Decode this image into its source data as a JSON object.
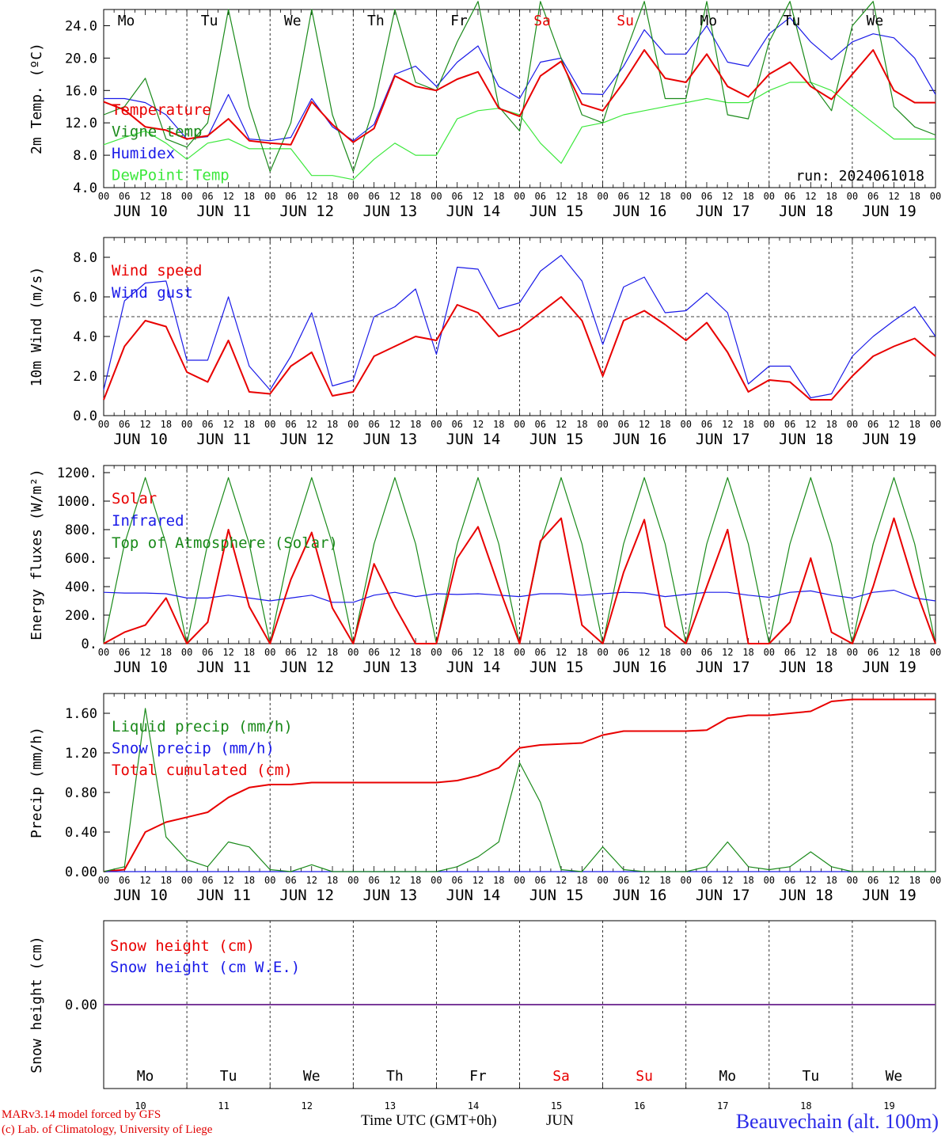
{
  "run_label": "run: 2024061018",
  "day_names": [
    "Mo",
    "Tu",
    "We",
    "Th",
    "Fr",
    "Sa",
    "Su",
    "Mo",
    "Tu",
    "We"
  ],
  "weekend_color": "#e80000",
  "weekday_color": "#000000",
  "hour_ticks": [
    "00",
    "06",
    "12",
    "18"
  ],
  "final_hour_tick": "00",
  "date_labels": [
    "JUN 10",
    "JUN 11",
    "JUN 12",
    "JUN 13",
    "JUN 14",
    "JUN 15",
    "JUN 16",
    "JUN 17",
    "JUN 18",
    "JUN 19"
  ],
  "day_numbers": [
    "10",
    "11",
    "12",
    "13",
    "14",
    "15",
    "16",
    "17",
    "18",
    "19"
  ],
  "footer": {
    "model_line": "MARv3.14 model forced by GFS",
    "lab_line": "(c) Lab. of Climatology, University of Liege",
    "time_axis": "Time UTC (GMT+0h)",
    "month": "JUN",
    "station": "Beauvechain (alt. 100m)"
  },
  "colors": {
    "red": "#e80000",
    "green": "#1a8a1a",
    "blue": "#1a1ae8",
    "light_green": "#3ce83c",
    "purple": "#7a3a9a"
  },
  "chart_data": [
    {
      "type": "line",
      "ylabel": "2m Temp. (ºC)",
      "ylim": [
        4,
        26
      ],
      "yticks": [
        "4.0",
        "8.0",
        "12.0",
        "16.0",
        "20.0",
        "24.0"
      ],
      "x": [
        0,
        6,
        12,
        18,
        24,
        30,
        36,
        42,
        48,
        54,
        60,
        66,
        72,
        78,
        84,
        90,
        96,
        102,
        108,
        114,
        120,
        126,
        132,
        138,
        144,
        150,
        156,
        162,
        168,
        174,
        180,
        186,
        192,
        198,
        204,
        210,
        216,
        222,
        228,
        234,
        240
      ],
      "legend": [
        "Temperature",
        "Vigne temp",
        "Humidex",
        "DewPoint Temp"
      ],
      "series": [
        {
          "name": "Temperature",
          "color": "red",
          "values": [
            14.6,
            13.6,
            11.5,
            11.1,
            10.0,
            10.4,
            12.5,
            9.8,
            9.5,
            9.3,
            14.6,
            11.8,
            9.6,
            11.3,
            17.8,
            16.5,
            16.0,
            17.4,
            18.3,
            13.8,
            12.8,
            17.8,
            19.6,
            14.3,
            13.5,
            17.0,
            21.0,
            17.5,
            17.0,
            20.5,
            16.5,
            15.2,
            18.0,
            19.5,
            16.5,
            14.9,
            18.0,
            21.0,
            16.0,
            14.5,
            14.5
          ]
        },
        {
          "name": "Vigne temp",
          "color": "green",
          "values": [
            13.0,
            14.0,
            17.5,
            10.0,
            9.0,
            12.0,
            26.0,
            14.0,
            6.0,
            12.0,
            26.0,
            13.0,
            6.0,
            14.0,
            26.0,
            17.0,
            16.0,
            22.0,
            27.0,
            14.0,
            11.0,
            27.0,
            20.0,
            13.0,
            12.0,
            20.0,
            27.0,
            15.0,
            15.0,
            27.0,
            13.0,
            12.5,
            22.0,
            27.0,
            17.0,
            13.5,
            24.0,
            27.0,
            14.0,
            11.5,
            10.5
          ]
        },
        {
          "name": "Humidex",
          "color": "blue",
          "values": [
            15.0,
            15.0,
            14.5,
            13.0,
            10.0,
            10.3,
            15.5,
            10.0,
            9.8,
            10.2,
            15.0,
            11.5,
            9.8,
            11.8,
            18.0,
            19.0,
            16.5,
            19.5,
            21.5,
            16.5,
            15.0,
            19.5,
            20.0,
            15.6,
            15.5,
            19.0,
            23.5,
            20.5,
            20.5,
            24.0,
            19.5,
            19.0,
            23.0,
            25.0,
            22.0,
            19.8,
            22.0,
            23.0,
            22.5,
            20.0,
            15.5
          ]
        },
        {
          "name": "DewPoint Temp",
          "color": "light_green",
          "values": [
            9.3,
            10.2,
            11.0,
            9.5,
            7.5,
            9.5,
            10.0,
            8.8,
            8.8,
            8.8,
            5.5,
            5.5,
            5.0,
            7.5,
            9.5,
            8.0,
            8.0,
            12.5,
            13.5,
            13.8,
            13.0,
            9.5,
            7.0,
            11.5,
            12.0,
            13.0,
            13.5,
            14.0,
            14.5,
            15.0,
            14.5,
            14.5,
            16.0,
            17.0,
            17.0,
            16.0,
            14.0,
            12.0,
            10.0,
            10.0,
            10.0
          ]
        }
      ]
    },
    {
      "type": "line",
      "ylabel": "10m Wind (m/s)",
      "ylim": [
        0,
        9
      ],
      "yticks": [
        "0.0",
        "2.0",
        "4.0",
        "6.0",
        "8.0"
      ],
      "ref_line": 5.0,
      "x": [
        0,
        6,
        12,
        18,
        24,
        30,
        36,
        42,
        48,
        54,
        60,
        66,
        72,
        78,
        84,
        90,
        96,
        102,
        108,
        114,
        120,
        126,
        132,
        138,
        144,
        150,
        156,
        162,
        168,
        174,
        180,
        186,
        192,
        198,
        204,
        210,
        216,
        222,
        228,
        234,
        240
      ],
      "legend": [
        "Wind speed",
        "Wind gust"
      ],
      "series": [
        {
          "name": "Wind speed",
          "color": "red",
          "values": [
            0.8,
            3.5,
            4.8,
            4.5,
            2.2,
            1.7,
            3.8,
            1.2,
            1.1,
            2.5,
            3.2,
            1.0,
            1.2,
            3.0,
            3.5,
            4.0,
            3.8,
            5.6,
            5.2,
            4.0,
            4.4,
            5.2,
            6.0,
            4.8,
            2.0,
            4.8,
            5.3,
            4.6,
            3.8,
            4.7,
            3.2,
            1.2,
            1.8,
            1.7,
            0.8,
            0.8,
            2.0,
            3.0,
            3.5,
            3.9,
            3.0
          ]
        },
        {
          "name": "Wind gust",
          "color": "blue",
          "values": [
            1.3,
            5.8,
            6.7,
            6.8,
            2.8,
            2.8,
            6.0,
            2.5,
            1.3,
            3.0,
            5.2,
            1.5,
            1.8,
            5.0,
            5.5,
            6.4,
            3.1,
            7.5,
            7.4,
            5.4,
            5.7,
            7.3,
            8.1,
            6.8,
            3.6,
            6.5,
            7.0,
            5.2,
            5.3,
            6.2,
            5.2,
            1.6,
            2.5,
            2.5,
            0.9,
            1.1,
            3.0,
            4.0,
            4.8,
            5.5,
            4.0
          ]
        }
      ]
    },
    {
      "type": "line",
      "ylabel": "Energy fluxes (W/m²)",
      "ylim": [
        0,
        1250
      ],
      "yticks": [
        "0.",
        "200.",
        "400.",
        "600.",
        "800.",
        "1000.",
        "1200."
      ],
      "x": [
        0,
        6,
        12,
        18,
        24,
        30,
        36,
        42,
        48,
        54,
        60,
        66,
        72,
        78,
        84,
        90,
        96,
        102,
        108,
        114,
        120,
        126,
        132,
        138,
        144,
        150,
        156,
        162,
        168,
        174,
        180,
        186,
        192,
        198,
        204,
        210,
        216,
        222,
        228,
        234,
        240
      ],
      "legend": [
        "Solar",
        "Infrared",
        "Top of Atmosphere (Solar)"
      ],
      "series": [
        {
          "name": "Solar",
          "color": "red",
          "values": [
            0,
            80,
            130,
            320,
            0,
            150,
            800,
            260,
            0,
            450,
            780,
            250,
            0,
            560,
            260,
            0,
            0,
            600,
            820,
            400,
            0,
            720,
            880,
            130,
            0,
            500,
            870,
            120,
            0,
            400,
            800,
            0,
            0,
            150,
            600,
            80,
            0,
            400,
            880,
            400,
            0
          ]
        },
        {
          "name": "Infrared",
          "color": "blue",
          "values": [
            360,
            355,
            355,
            350,
            320,
            320,
            340,
            320,
            300,
            320,
            340,
            290,
            290,
            340,
            360,
            330,
            350,
            345,
            350,
            340,
            330,
            350,
            350,
            340,
            350,
            360,
            355,
            330,
            345,
            360,
            360,
            340,
            325,
            360,
            370,
            340,
            320,
            360,
            375,
            320,
            300
          ]
        },
        {
          "name": "Top of Atmosphere (Solar)",
          "color": "green",
          "values": [
            0,
            700,
            1165,
            700,
            0,
            700,
            1165,
            700,
            0,
            700,
            1165,
            700,
            0,
            700,
            1165,
            700,
            0,
            700,
            1165,
            700,
            0,
            700,
            1165,
            700,
            0,
            700,
            1165,
            700,
            0,
            700,
            1165,
            700,
            0,
            700,
            1165,
            700,
            0,
            700,
            1165,
            700,
            0
          ]
        }
      ]
    },
    {
      "type": "line",
      "ylabel": "Precip (mm/h)",
      "ylim": [
        0,
        1.8
      ],
      "yticks": [
        "0.00",
        "0.40",
        "0.80",
        "1.20",
        "1.60"
      ],
      "x": [
        0,
        6,
        12,
        18,
        24,
        30,
        36,
        42,
        48,
        54,
        60,
        66,
        72,
        78,
        84,
        90,
        96,
        102,
        108,
        114,
        120,
        126,
        132,
        138,
        144,
        150,
        156,
        162,
        168,
        174,
        180,
        186,
        192,
        198,
        204,
        210,
        216,
        222,
        228,
        234,
        240
      ],
      "legend": [
        "Liquid precip (mm/h)",
        "Snow precip (mm/h)",
        "Total cumulated (cm)"
      ],
      "series": [
        {
          "name": "Liquid precip (mm/h)",
          "color": "green",
          "values": [
            0,
            0.05,
            1.65,
            0.35,
            0.12,
            0.05,
            0.3,
            0.25,
            0.02,
            0.0,
            0.07,
            0.0,
            0,
            0,
            0,
            0,
            0,
            0.05,
            0.15,
            0.3,
            1.1,
            0.7,
            0.02,
            0.0,
            0.25,
            0.02,
            0,
            0,
            0,
            0.05,
            0.3,
            0.05,
            0.02,
            0.05,
            0.2,
            0.05,
            0,
            0,
            0,
            0,
            0
          ]
        },
        {
          "name": "Snow precip (mm/h)",
          "color": "blue",
          "values": [
            0,
            0,
            0,
            0,
            0,
            0,
            0,
            0,
            0,
            0,
            0,
            0,
            0,
            0,
            0,
            0,
            0,
            0,
            0,
            0,
            0,
            0,
            0,
            0,
            0,
            0,
            0,
            0,
            0,
            0,
            0,
            0,
            0,
            0,
            0,
            0,
            0,
            0,
            0,
            0,
            0
          ]
        },
        {
          "name": "Total cumulated (cm)",
          "color": "red",
          "values": [
            0,
            0.02,
            0.4,
            0.5,
            0.55,
            0.6,
            0.75,
            0.85,
            0.88,
            0.88,
            0.9,
            0.9,
            0.9,
            0.9,
            0.9,
            0.9,
            0.9,
            0.92,
            0.97,
            1.05,
            1.25,
            1.28,
            1.29,
            1.3,
            1.38,
            1.42,
            1.42,
            1.42,
            1.42,
            1.43,
            1.55,
            1.58,
            1.58,
            1.6,
            1.62,
            1.72,
            1.74,
            1.74,
            1.74,
            1.74,
            1.74
          ]
        }
      ]
    },
    {
      "type": "line",
      "ylabel": "Snow height (cm)",
      "ylim": [
        -1,
        1
      ],
      "yticks": [
        "0.00"
      ],
      "x": [
        0,
        240
      ],
      "legend": [
        "Snow height (cm)",
        "Snow height (cm W.E.)"
      ],
      "series": [
        {
          "name": "Snow height (cm)",
          "color": "red",
          "values": [
            0,
            0
          ]
        },
        {
          "name": "Snow height (cm W.E.)",
          "color": "blue",
          "values": [
            0,
            0
          ]
        }
      ]
    }
  ]
}
